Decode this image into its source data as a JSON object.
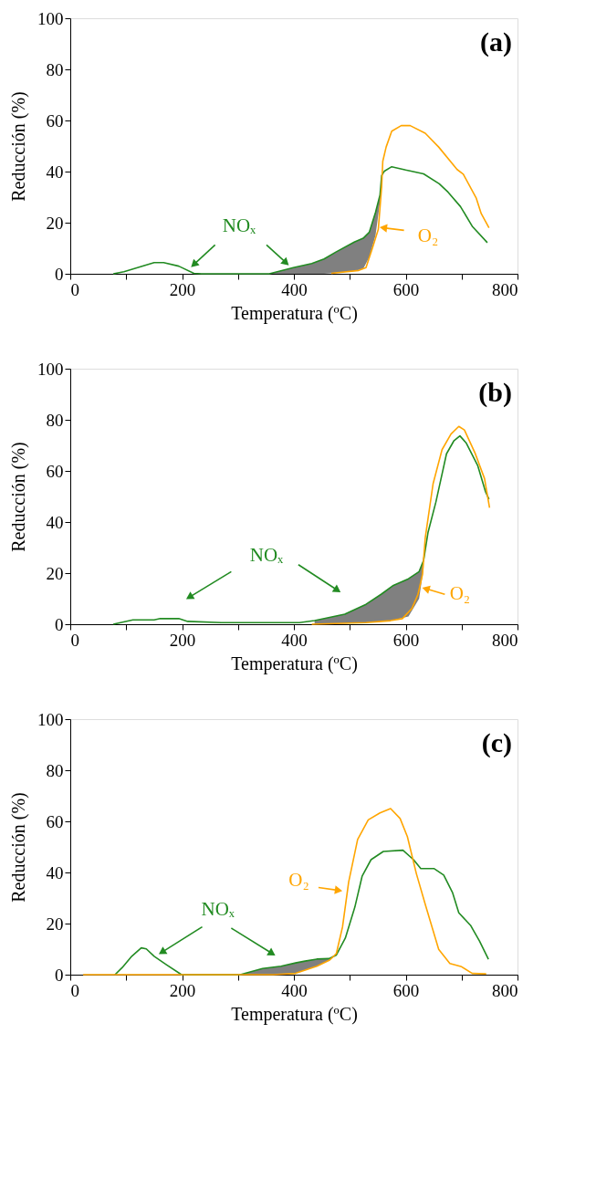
{
  "chart_data": [
    {
      "type": "line",
      "title": "(a)",
      "xlabel": "Temperatura (ºC)",
      "ylabel": "Reducción (%)",
      "xlim": [
        0,
        800
      ],
      "ylim": [
        0,
        100
      ],
      "xticks": [
        0,
        {
          "value": 100,
          "label": null
        },
        200,
        {
          "value": 300,
          "label": null
        },
        400,
        {
          "value": 500,
          "label": null
        },
        600,
        {
          "value": 700,
          "label": null
        },
        800
      ],
      "yticks": [
        0,
        20,
        40,
        60,
        80,
        100
      ],
      "grid": false,
      "line_style": "solid",
      "series": [
        {
          "name": "NOₓ",
          "color": "#228b22",
          "x": [
            77,
            96,
            150,
            167,
            194,
            221,
            235,
            356,
            399,
            432,
            454,
            476,
            508,
            524,
            535,
            546,
            554,
            557,
            562,
            575,
            600,
            632,
            660,
            676,
            698,
            719,
            746
          ],
          "values": [
            0,
            0.8,
            4.4,
            4.4,
            3,
            0.2,
            0,
            0,
            2.4,
            4,
            5.8,
            8.6,
            12.4,
            13.9,
            16.3,
            24,
            30.8,
            38.5,
            40.2,
            41.9,
            40.6,
            39.1,
            35.2,
            31.9,
            26.3,
            18.6,
            12.2
          ],
          "lower": [
            null,
            null,
            null,
            null,
            null,
            null,
            null,
            0,
            0,
            0,
            0,
            0.4,
            1.1,
            2,
            6.5,
            15,
            28,
            34,
            null,
            null,
            null,
            null,
            null,
            null,
            null,
            null,
            null
          ],
          "upper": [
            null,
            null,
            null,
            null,
            null,
            null,
            null,
            0,
            2.4,
            4,
            5.8,
            8.6,
            12.4,
            13.9,
            16.3,
            24,
            30.8,
            38.5,
            null,
            null,
            null,
            null,
            null,
            null,
            null,
            null,
            null
          ]
        },
        {
          "name": "O₂",
          "color": "#ffa500",
          "x": [
            467,
            516,
            529,
            540,
            551,
            557,
            559,
            565,
            575,
            592,
            608,
            635,
            659,
            692,
            703,
            726,
            735,
            749
          ],
          "values": [
            0.2,
            1.3,
            2.4,
            9.7,
            17.4,
            34,
            44,
            49.6,
            55.8,
            58,
            58,
            55,
            49.6,
            40.8,
            39,
            29.7,
            23.6,
            18
          ]
        }
      ]
    },
    {
      "type": "line",
      "title": "(b)",
      "xlabel": "Temperatura (ºC)",
      "ylabel": "Reducción (%)",
      "xlim": [
        0,
        800
      ],
      "ylim": [
        0,
        100
      ],
      "xticks": [
        0,
        {
          "value": 100,
          "label": null
        },
        200,
        {
          "value": 300,
          "label": null
        },
        400,
        {
          "value": 500,
          "label": null
        },
        600,
        {
          "value": 700,
          "label": null
        },
        800
      ],
      "yticks": [
        0,
        20,
        40,
        60,
        80,
        100
      ],
      "grid": false,
      "line_style": "solid",
      "series": [
        {
          "name": "NOₓ",
          "color": "#228b22",
          "x": [
            77,
            112,
            150,
            161,
            194,
            210,
            270,
            410,
            437,
            491,
            529,
            556,
            578,
            605,
            624,
            632,
            640,
            654,
            673,
            686,
            697,
            708,
            729,
            743,
            749
          ],
          "values": [
            0,
            1.7,
            1.7,
            2.2,
            2.2,
            1.1,
            0.6,
            0.6,
            1.4,
            3.9,
            7.8,
            11.7,
            15.2,
            17.8,
            20.6,
            25,
            36,
            47.8,
            66.7,
            71.7,
            73.7,
            71,
            62,
            51.7,
            49
          ],
          "lower": [
            null,
            null,
            null,
            null,
            null,
            null,
            null,
            null,
            0,
            0.3,
            0.6,
            1,
            1.6,
            3,
            10,
            22,
            null,
            null,
            null,
            null,
            null,
            null,
            null,
            null,
            null
          ],
          "upper": [
            null,
            null,
            null,
            null,
            null,
            null,
            null,
            null,
            1.4,
            3.9,
            7.8,
            11.7,
            15.2,
            17.8,
            20.6,
            25,
            null,
            null,
            null,
            null,
            null,
            null,
            null,
            null,
            null
          ]
        },
        {
          "name": "O₂",
          "color": "#ffa500",
          "x": [
            432,
            529,
            573,
            594,
            611,
            622,
            630,
            635,
            649,
            665,
            681,
            695,
            705,
            724,
            741,
            750
          ],
          "values": [
            0,
            0.6,
            1.4,
            2.2,
            6.1,
            11.7,
            19.4,
            33.9,
            55,
            68.3,
            74.4,
            77.4,
            76,
            67,
            57,
            45.6
          ]
        }
      ]
    },
    {
      "type": "line",
      "title": "(c)",
      "xlabel": "Temperatura (ºC)",
      "ylabel": "Reducción (%)",
      "xlim": [
        0,
        800
      ],
      "ylim": [
        0,
        100
      ],
      "xticks": [
        0,
        {
          "value": 100,
          "label": null
        },
        200,
        {
          "value": 300,
          "label": null
        },
        400,
        {
          "value": 500,
          "label": null
        },
        600,
        {
          "value": 700,
          "label": null
        },
        800
      ],
      "yticks": [
        0,
        20,
        40,
        60,
        80,
        100
      ],
      "grid": false,
      "line_style": "solid",
      "series": [
        {
          "name": "NOₓ",
          "color": "#228b22",
          "x": [
            80,
            93,
            110,
            127,
            136,
            150,
            172,
            199,
            304,
            344,
            377,
            403,
            420,
            441,
            463,
            476,
            492,
            509,
            522,
            538,
            560,
            595,
            614,
            627,
            651,
            668,
            684,
            695,
            716,
            732,
            748
          ],
          "values": [
            0,
            2.8,
            7.2,
            10.5,
            10.1,
            7.2,
            3.9,
            0,
            0,
            2.4,
            3.3,
            4.6,
            5.3,
            6.1,
            6.3,
            7.7,
            14.3,
            26.4,
            38.5,
            45,
            48.2,
            48.7,
            45,
            41.5,
            41.5,
            39,
            32,
            24.2,
            19.3,
            13.2,
            6
          ],
          "lower": [
            null,
            null,
            null,
            null,
            null,
            null,
            null,
            null,
            0,
            0,
            0,
            0.5,
            1.8,
            3.3,
            5.5,
            7.7,
            null,
            null,
            null,
            null,
            null,
            null,
            null,
            null,
            null,
            null,
            null,
            null,
            null,
            null,
            null
          ],
          "upper": [
            null,
            null,
            null,
            null,
            null,
            null,
            null,
            null,
            0,
            2.4,
            3.3,
            4.6,
            5.3,
            6.1,
            6.3,
            7.7,
            null,
            null,
            null,
            null,
            null,
            null,
            null,
            null,
            null,
            null,
            null,
            null,
            null,
            null,
            null
          ]
        },
        {
          "name": "O₂",
          "color": "#ffa500",
          "x": [
            23,
            80,
            145,
            363,
            403,
            441,
            464,
            476,
            487,
            498,
            514,
            533,
            554,
            573,
            590,
            603,
            619,
            635,
            659,
            679,
            700,
            719,
            744
          ],
          "values": [
            0,
            0,
            0,
            0,
            0.5,
            3.3,
            5.7,
            8.3,
            18.7,
            36.3,
            52.9,
            60.6,
            63.3,
            65,
            61.1,
            54,
            39.6,
            27.5,
            9.9,
            4.4,
            3.1,
            0.5,
            0.3
          ]
        }
      ]
    }
  ]
}
